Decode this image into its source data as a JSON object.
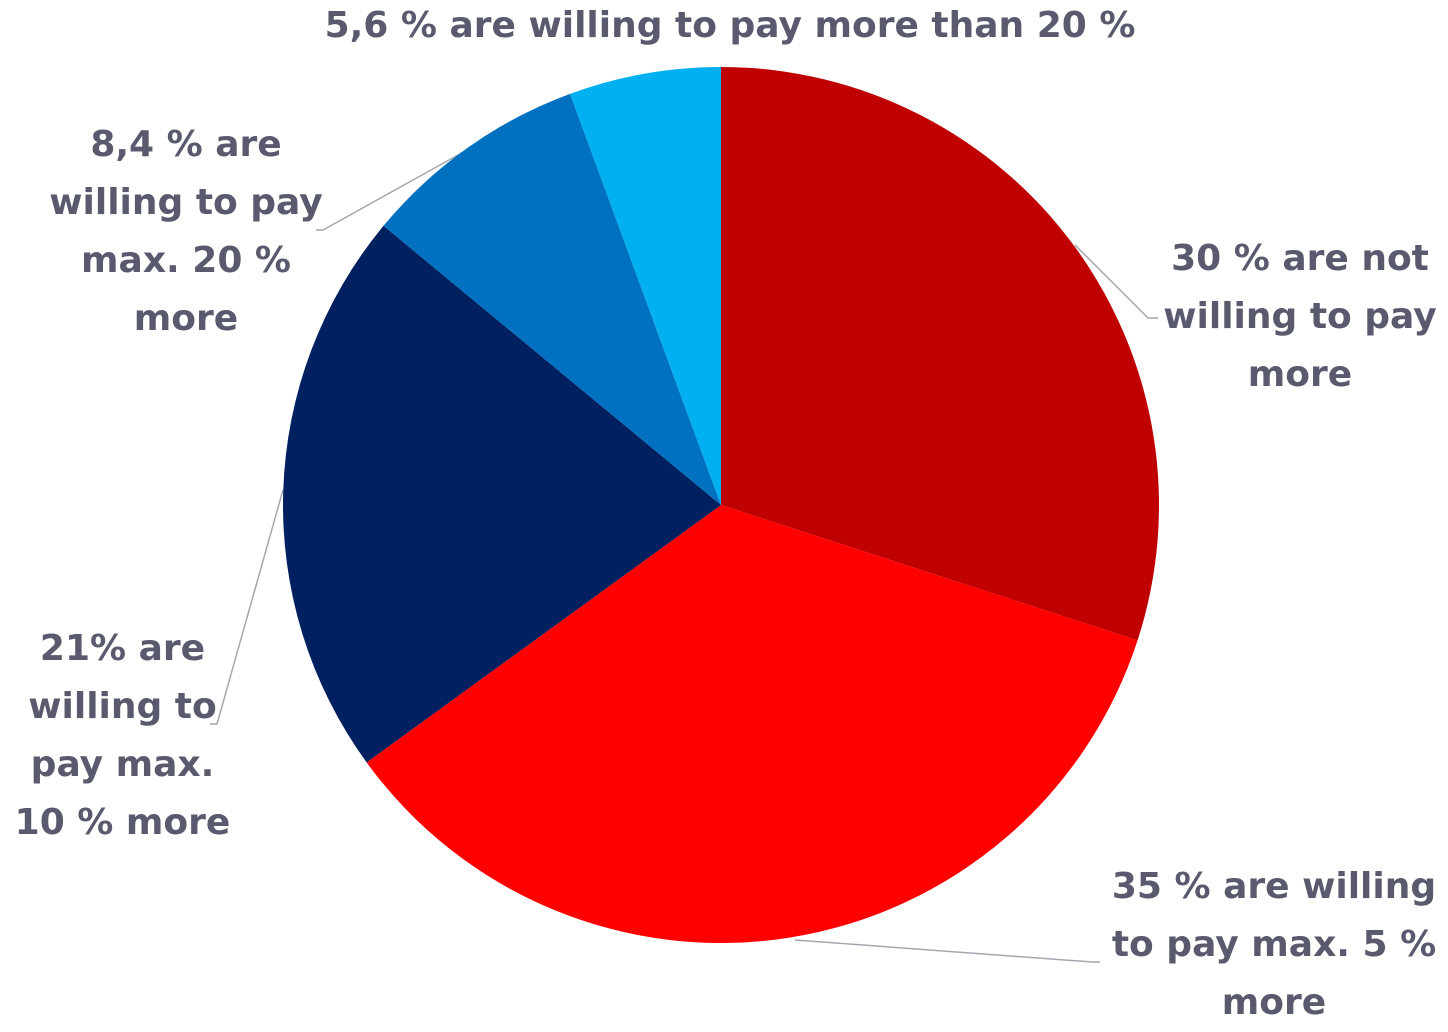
{
  "chart_data": {
    "type": "pie",
    "start_angle_deg": 0,
    "direction": "clockwise",
    "slices": [
      {
        "value": 30,
        "color": "#c00000",
        "label_lines": [
          "30 % are not",
          "willing to pay",
          "more"
        ]
      },
      {
        "value": 35,
        "color": "#ff0000",
        "label_lines": [
          "35 % are willing",
          "to pay max. 5 %",
          "more"
        ]
      },
      {
        "value": 21,
        "color": "#002060",
        "label_lines": [
          "21% are",
          "willing to",
          "pay max.",
          "10 % more"
        ]
      },
      {
        "value": 8.4,
        "color": "#0070c0",
        "label_lines": [
          "8,4 % are",
          "willing to pay",
          "max. 20 %",
          "more"
        ]
      },
      {
        "value": 5.6,
        "color": "#00b0f0",
        "label_lines": [
          "5,6 % are willing to pay more than 20 %"
        ]
      }
    ],
    "label_color": "#595a6e",
    "leader_line_color": "#a6a6b0"
  }
}
